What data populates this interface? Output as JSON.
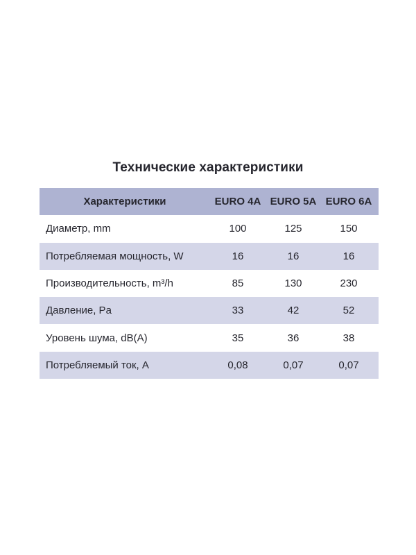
{
  "title": "Технические характеристики",
  "colors": {
    "header_bg": "#aeb3d2",
    "row_alt_bg": "#d4d6e8",
    "row_bg": "#ffffff",
    "text": "#26262e",
    "page_bg": "#ffffff"
  },
  "chart_data": {
    "type": "table",
    "title": "Технические характеристики",
    "columns": [
      "Характеристики",
      "EURO 4A",
      "EURO 5A",
      "EURO 6A"
    ],
    "rows": [
      [
        "Диаметр, mm",
        "100",
        "125",
        "150"
      ],
      [
        "Потребляемая мощность, W",
        "16",
        "16",
        "16"
      ],
      [
        "Производительность, m³/h",
        "85",
        "130",
        "230"
      ],
      [
        "Давление, Pa",
        "33",
        "42",
        "52"
      ],
      [
        "Уровень шума, dB(A)",
        "35",
        "36",
        "38"
      ],
      [
        "Потребляемый ток, А",
        "0,08",
        "0,07",
        "0,07"
      ]
    ]
  }
}
